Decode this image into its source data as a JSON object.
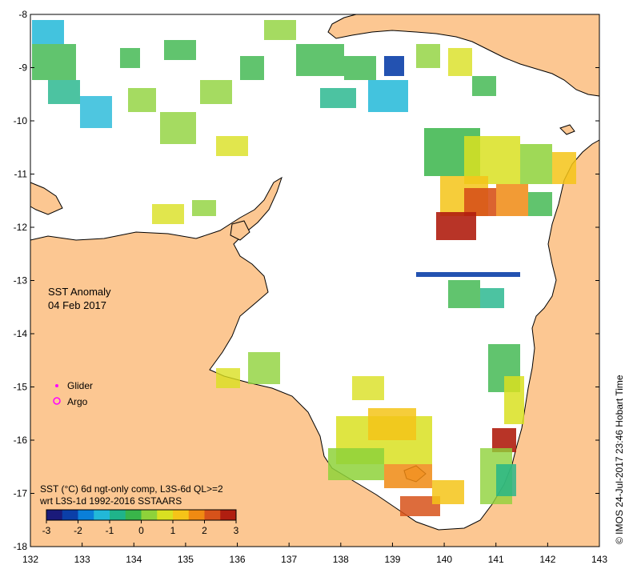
{
  "map": {
    "title": "SST Anomaly",
    "date": "04 Feb 2017",
    "legend_items": [
      {
        "label": "Glider",
        "color": "#ff00ff",
        "symbol": "dot"
      },
      {
        "label": "Argo",
        "color": "#ff00ff",
        "symbol": "ring"
      }
    ],
    "colorbar": {
      "line1": "SST (°C) 6d ngt-only comp, L3S-6d QL>=2",
      "line2": "wrt L3S-1d 1992-2016 SSTAARS",
      "min": -3,
      "max": 3,
      "ticks": [
        "-3",
        "-2",
        "-1",
        "0",
        "1",
        "2",
        "3"
      ],
      "colors": [
        "#1a1a7a",
        "#0b3fa8",
        "#0a7fd9",
        "#22b8d8",
        "#1fb48a",
        "#39b54a",
        "#8ed23a",
        "#d9e021",
        "#f5c418",
        "#f08a12",
        "#d7521a",
        "#b01e10"
      ]
    },
    "x_ticks": [
      "132",
      "133",
      "134",
      "135",
      "136",
      "137",
      "138",
      "139",
      "140",
      "141",
      "142",
      "143"
    ],
    "y_ticks": [
      "-8",
      "-9",
      "-10",
      "-11",
      "-12",
      "-13",
      "-14",
      "-15",
      "-16",
      "-17",
      "-18"
    ],
    "x_range": [
      132,
      143
    ],
    "y_range": [
      -18,
      -8
    ],
    "credit": "©  IMOS 24-Jul-2017 23:46 Hobart Time",
    "colors": {
      "land": "#fcc792",
      "sea": "#ffffff",
      "coast": "#000000"
    }
  }
}
